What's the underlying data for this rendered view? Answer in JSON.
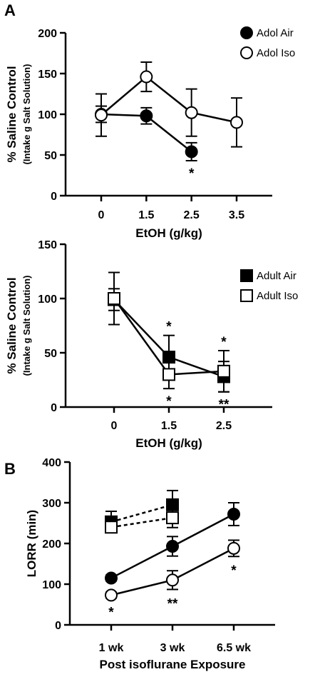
{
  "chart_data": [
    {
      "panel_label": "A",
      "type": "line",
      "xlabel": "EtOH (g/kg)",
      "ylabel": "% Saline Control",
      "ylabel_sub": "(Intake g Salt Solution)",
      "categories": [
        "0",
        "1.5",
        "2.5",
        "3.5"
      ],
      "ylim": [
        0,
        200
      ],
      "yticks": [
        "0",
        "50",
        "100",
        "150",
        "200"
      ],
      "legend_position": "top-right",
      "series": [
        {
          "name": "Adol Air",
          "marker": "filled-circle",
          "line": "solid",
          "values": [
            100,
            98,
            54,
            null
          ],
          "errors": [
            10,
            10,
            11,
            null
          ]
        },
        {
          "name": "Adol Iso",
          "marker": "open-circle",
          "line": "solid",
          "values": [
            99,
            146,
            102,
            90
          ],
          "errors": [
            26,
            18,
            29,
            30
          ]
        }
      ],
      "annotations": [
        {
          "text": "*",
          "category": "2.5",
          "position": "below"
        }
      ]
    },
    {
      "panel_label": "",
      "type": "line",
      "xlabel": "EtOH (g/kg)",
      "ylabel": "% Saline Control",
      "ylabel_sub": "(Intake g Salt Solution)",
      "categories": [
        "0",
        "1.5",
        "2.5"
      ],
      "ylim": [
        0,
        150
      ],
      "yticks": [
        "0",
        "50",
        "100",
        "150"
      ],
      "legend_position": "top-right",
      "series": [
        {
          "name": "Adult Air",
          "marker": "filled-square",
          "line": "solid",
          "values": [
            99,
            46,
            28
          ],
          "errors": [
            10,
            20,
            14
          ]
        },
        {
          "name": "Adult Iso",
          "marker": "open-square",
          "line": "solid",
          "values": [
            100,
            30,
            33
          ],
          "errors": [
            24,
            13,
            19
          ]
        }
      ],
      "annotations": [
        {
          "text": "*",
          "category": "1.5",
          "position": "above"
        },
        {
          "text": "*",
          "category": "1.5",
          "position": "below"
        },
        {
          "text": "*",
          "category": "2.5",
          "position": "above"
        },
        {
          "text": "**",
          "category": "2.5",
          "position": "below"
        }
      ]
    },
    {
      "panel_label": "B",
      "type": "line",
      "xlabel": "Post isoflurane Exposure",
      "ylabel": "LORR (min)",
      "categories": [
        "1 wk",
        "3 wk",
        "6.5 wk"
      ],
      "ylim": [
        0,
        400
      ],
      "yticks": [
        "0",
        "100",
        "200",
        "300",
        "400"
      ],
      "series": [
        {
          "marker": "filled-square",
          "line": "dashed",
          "values": [
            253,
            295,
            null
          ],
          "errors": [
            26,
            35,
            null
          ]
        },
        {
          "marker": "open-square",
          "line": "dashed",
          "values": [
            240,
            263,
            null
          ],
          "errors": [
            13,
            24,
            null
          ]
        },
        {
          "marker": "filled-circle",
          "line": "solid",
          "values": [
            115,
            193,
            272
          ],
          "errors": [
            7,
            24,
            28
          ]
        },
        {
          "marker": "open-circle",
          "line": "solid",
          "values": [
            73,
            110,
            188
          ],
          "errors": [
            7,
            23,
            20
          ]
        }
      ],
      "annotations": [
        {
          "text": "*",
          "category": "1 wk",
          "position": "below"
        },
        {
          "text": "**",
          "category": "3 wk",
          "position": "below"
        },
        {
          "text": "*",
          "category": "6.5 wk",
          "position": "below"
        }
      ]
    }
  ]
}
